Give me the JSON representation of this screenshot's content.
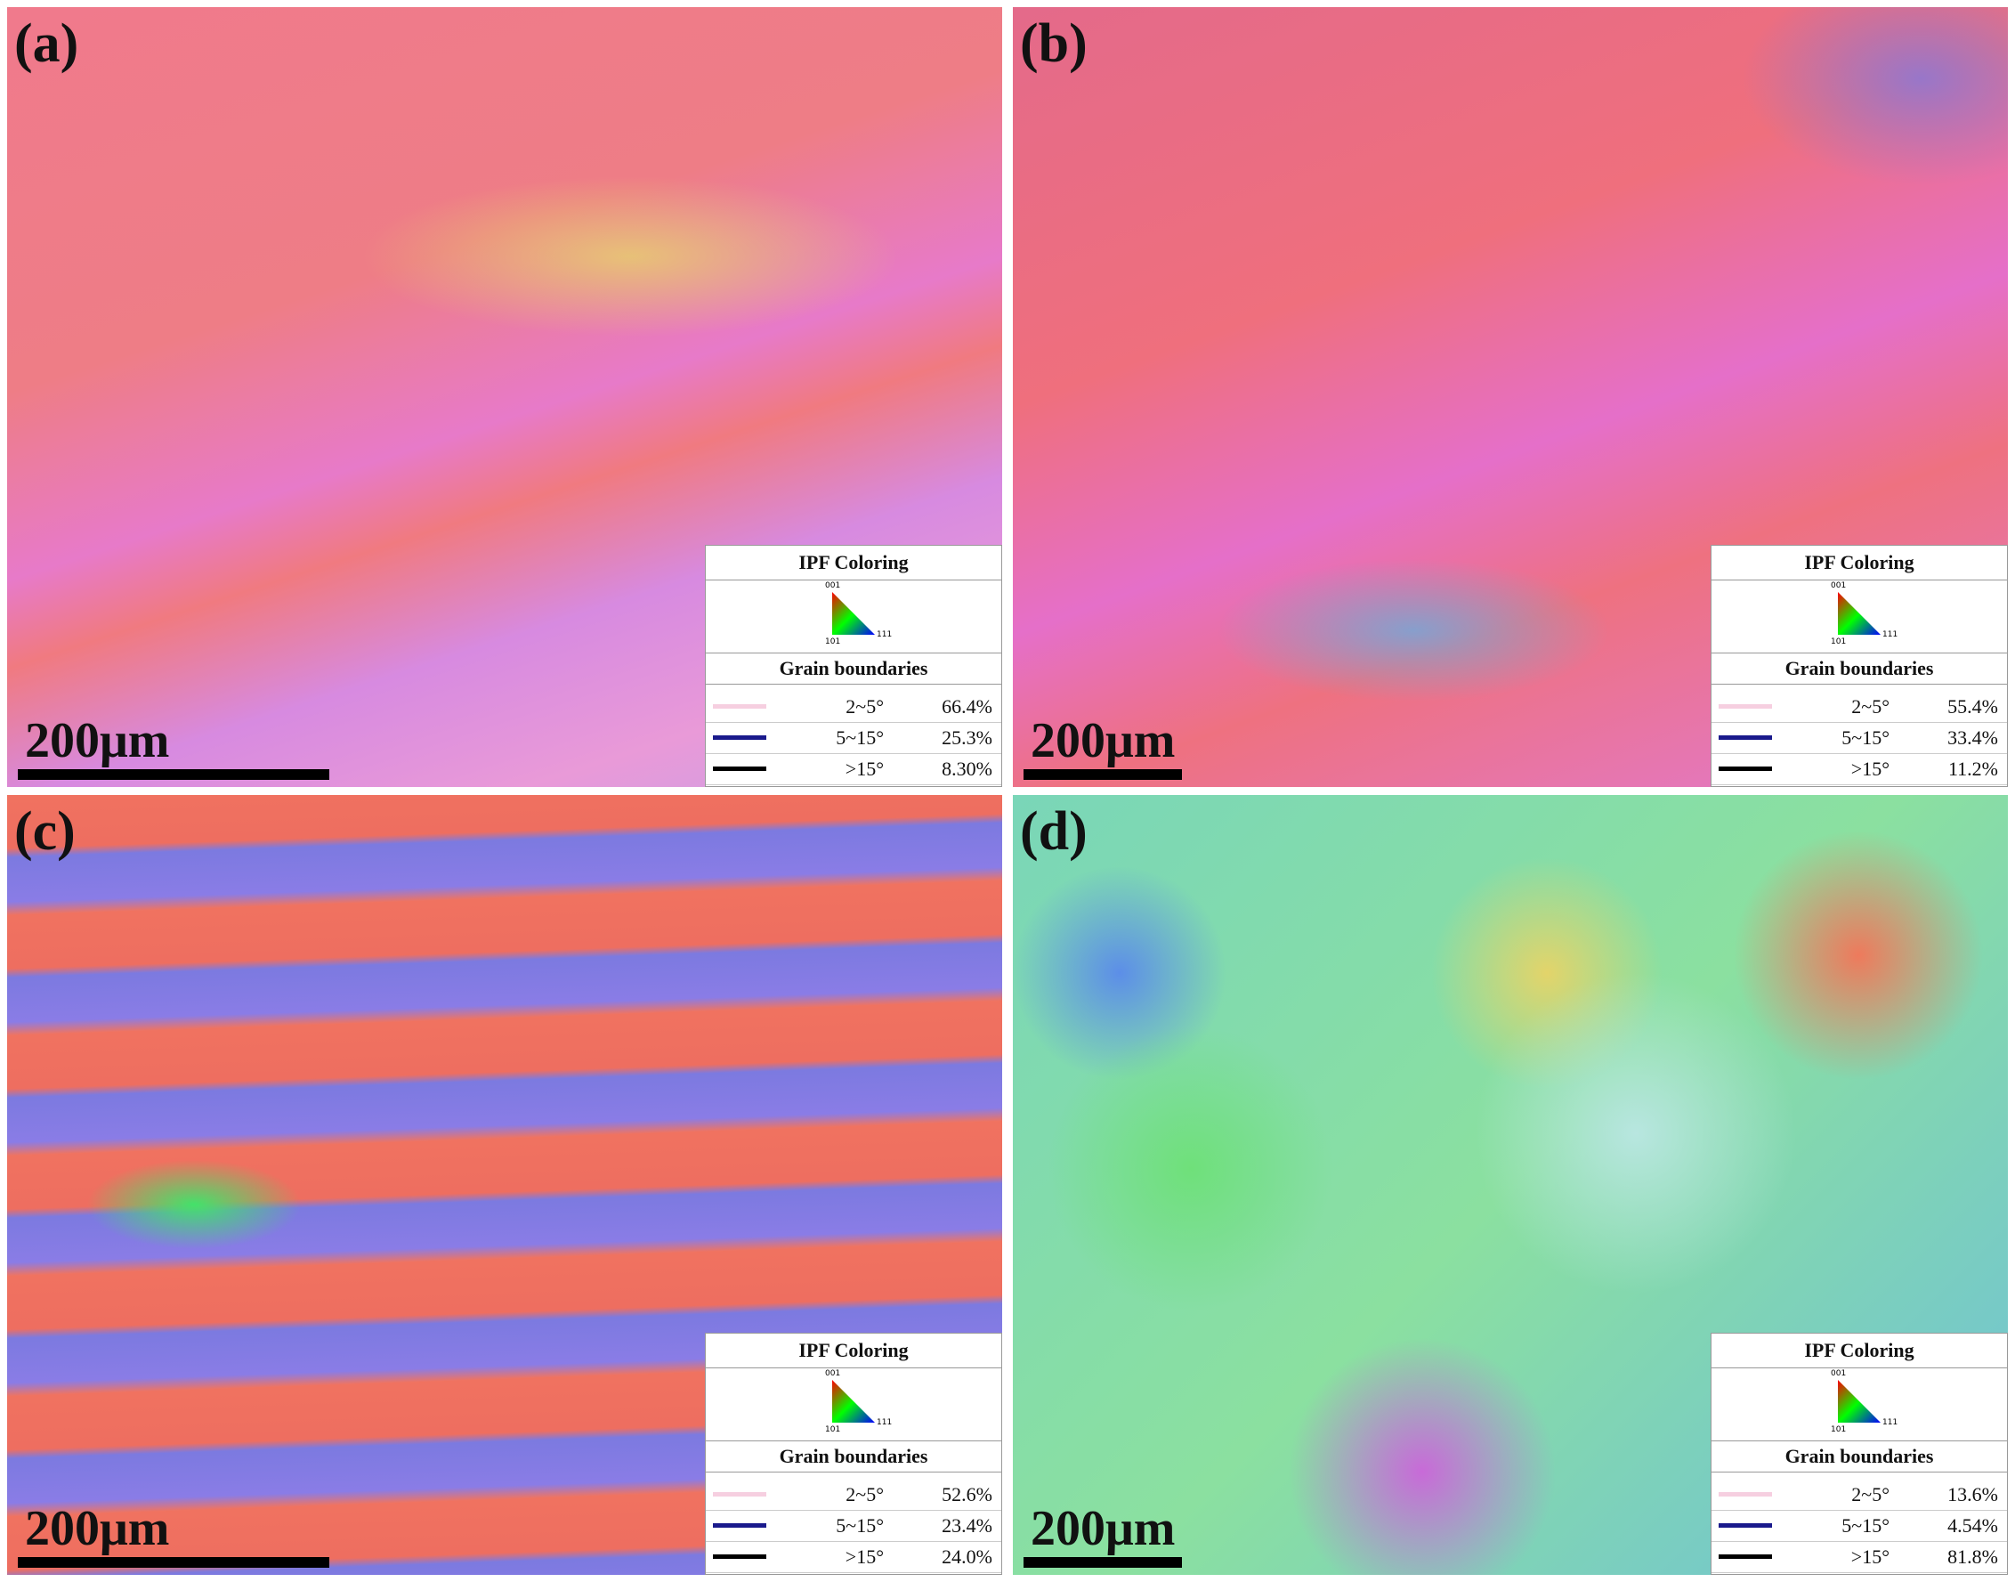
{
  "panels": [
    {
      "label": "(a)",
      "scale_bar": "200μm",
      "legend": {
        "title": "IPF Coloring",
        "triangle": [
          "001",
          "101",
          "111"
        ],
        "section": "Grain boundaries",
        "rows": [
          {
            "angle": "2~5°",
            "fraction": "66.4%"
          },
          {
            "angle": "5~15°",
            "fraction": "25.3%"
          },
          {
            "angle": ">15°",
            "fraction": "8.30%"
          }
        ]
      }
    },
    {
      "label": "(b)",
      "scale_bar": "200μm",
      "legend": {
        "title": "IPF Coloring",
        "triangle": [
          "001",
          "101",
          "111"
        ],
        "section": "Grain boundaries",
        "rows": [
          {
            "angle": "2~5°",
            "fraction": "55.4%"
          },
          {
            "angle": "5~15°",
            "fraction": "33.4%"
          },
          {
            "angle": ">15°",
            "fraction": "11.2%"
          }
        ]
      }
    },
    {
      "label": "(c)",
      "scale_bar": "200μm",
      "legend": {
        "title": "IPF Coloring",
        "triangle": [
          "001",
          "101",
          "111"
        ],
        "section": "Grain boundaries",
        "rows": [
          {
            "angle": "2~5°",
            "fraction": "52.6%"
          },
          {
            "angle": "5~15°",
            "fraction": "23.4%"
          },
          {
            "angle": ">15°",
            "fraction": "24.0%"
          }
        ]
      }
    },
    {
      "label": "(d)",
      "scale_bar": "200μm",
      "legend": {
        "title": "IPF Coloring",
        "triangle": [
          "001",
          "101",
          "111"
        ],
        "section": "Grain boundaries",
        "rows": [
          {
            "angle": "2~5°",
            "fraction": "13.6%"
          },
          {
            "angle": "5~15°",
            "fraction": "4.54%"
          },
          {
            "angle": ">15°",
            "fraction": "81.8%"
          }
        ]
      }
    }
  ]
}
